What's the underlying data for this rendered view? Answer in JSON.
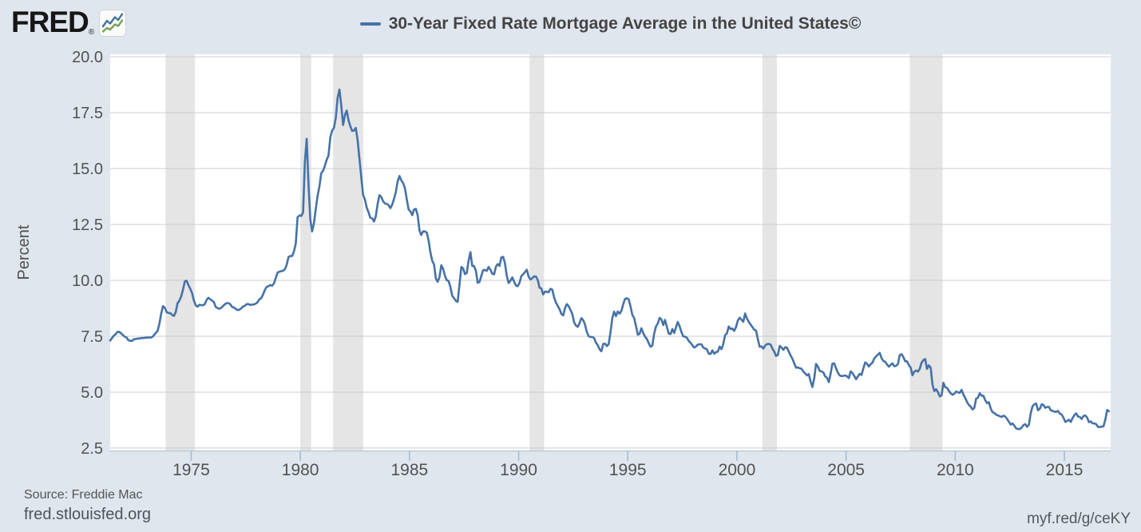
{
  "header": {
    "logo_text": "FRED",
    "registered_mark": "®"
  },
  "legend": {
    "series_label": "30-Year Fixed Rate Mortgage Average in the United States©"
  },
  "footer": {
    "source": "Source: Freddie Mac",
    "site": "fred.stlouisfed.org",
    "short_url": "myf.red/g/ceKY"
  },
  "colors": {
    "background": "#dfe6ee",
    "plot_background": "#ffffff",
    "line": "#4572a7",
    "grid": "#cccccc",
    "recession_band": "#e5e5e5",
    "axis_line": "#b9c9d6",
    "tick_mark": "#a4bccf",
    "tick_text": "#525252",
    "axis_title_text": "#4f4f4f",
    "logo_icon_blue": "#44749e",
    "logo_icon_green": "#76a255"
  },
  "chart_data": {
    "type": "line",
    "title": "30-Year Fixed Rate Mortgage Average in the United States©",
    "xlabel": "",
    "ylabel": "Percent",
    "x_ticks": [
      1975,
      1980,
      1985,
      1990,
      1995,
      2000,
      2005,
      2010,
      2015
    ],
    "y_ticks": [
      20,
      17.5,
      15,
      12.5,
      10,
      7.5,
      5,
      2.5
    ],
    "y_tick_labels": [
      "20.0",
      "17.5",
      "15.0",
      "12.5",
      "10.0",
      "7.5",
      "5.0",
      "2.5"
    ],
    "x_range": [
      1971.29,
      2017.12
    ],
    "y_range": [
      2.39,
      20.11
    ],
    "grid": true,
    "legend_position": "top-center",
    "recession_bands": [
      [
        1973.83,
        1975.17
      ],
      [
        1980.0,
        1980.5
      ],
      [
        1981.5,
        1982.88
      ],
      [
        1990.5,
        1991.17
      ],
      [
        2001.17,
        2001.83
      ],
      [
        2007.92,
        2009.42
      ]
    ],
    "series": {
      "name": "30-Year Fixed Rate Mortgage Average in the United States©",
      "units": "Percent",
      "frequency": "monthly",
      "start_year": 1971,
      "start_month": 4,
      "values": [
        7.31,
        7.42,
        7.53,
        7.6,
        7.7,
        7.69,
        7.63,
        7.55,
        7.48,
        7.44,
        7.32,
        7.3,
        7.29,
        7.37,
        7.37,
        7.4,
        7.4,
        7.42,
        7.42,
        7.43,
        7.44,
        7.44,
        7.44,
        7.46,
        7.54,
        7.65,
        7.73,
        8.05,
        8.5,
        8.85,
        8.77,
        8.58,
        8.54,
        8.54,
        8.46,
        8.41,
        8.58,
        8.97,
        9.09,
        9.28,
        9.59,
        9.96,
        9.98,
        9.79,
        9.62,
        9.43,
        9.1,
        8.89,
        8.82,
        8.91,
        8.89,
        8.89,
        8.94,
        9.13,
        9.22,
        9.15,
        9.1,
        9.02,
        8.81,
        8.76,
        8.73,
        8.77,
        8.85,
        8.93,
        8.98,
        8.98,
        8.93,
        8.81,
        8.79,
        8.72,
        8.67,
        8.69,
        8.75,
        8.83,
        8.86,
        8.94,
        8.94,
        8.9,
        8.92,
        8.92,
        8.96,
        9.02,
        9.16,
        9.2,
        9.36,
        9.57,
        9.71,
        9.74,
        9.79,
        9.76,
        9.86,
        10.11,
        10.35,
        10.39,
        10.41,
        10.43,
        10.5,
        10.69,
        11.04,
        11.09,
        11.09,
        11.3,
        11.64,
        12.83,
        12.9,
        12.88,
        13.04,
        15.28,
        16.33,
        14.26,
        12.71,
        12.19,
        12.56,
        13.2,
        13.79,
        14.21,
        14.79,
        14.9,
        15.13,
        15.4,
        15.58,
        16.4,
        16.7,
        16.83,
        17.28,
        18.16,
        18.53,
        17.82,
        16.95,
        17.4,
        17.6,
        17.16,
        16.89,
        16.68,
        16.7,
        16.82,
        16.27,
        15.43,
        14.61,
        13.83,
        13.62,
        13.25,
        13.04,
        12.8,
        12.78,
        12.63,
        12.87,
        13.43,
        13.81,
        13.73,
        13.54,
        13.44,
        13.42,
        13.37,
        13.23,
        13.39,
        13.65,
        13.94,
        14.42,
        14.67,
        14.47,
        14.35,
        14.13,
        13.64,
        13.18,
        13.08,
        12.92,
        13.17,
        13.2,
        12.91,
        12.22,
        12.03,
        12.19,
        12.19,
        12.14,
        11.78,
        11.26,
        10.88,
        10.71,
        10.08,
        9.94,
        10.14,
        10.68,
        10.51,
        10.2,
        10.01,
        9.97,
        9.7,
        9.31,
        9.2,
        9.08,
        9.04,
        9.83,
        10.6,
        10.54,
        10.28,
        10.33,
        10.89,
        11.26,
        10.65,
        10.64,
        10.43,
        9.89,
        9.93,
        10.2,
        10.46,
        10.46,
        10.43,
        10.6,
        10.48,
        10.3,
        10.27,
        10.61,
        10.73,
        10.65,
        11.03,
        11.05,
        10.77,
        10.2,
        9.88,
        9.99,
        10.13,
        9.95,
        9.77,
        9.74,
        9.9,
        10.2,
        10.27,
        10.37,
        10.48,
        10.16,
        10.04,
        10.1,
        10.18,
        10.17,
        10.01,
        9.67,
        9.64,
        9.37,
        9.5,
        9.49,
        9.47,
        9.62,
        9.58,
        9.24,
        9.01,
        8.86,
        8.71,
        8.5,
        8.43,
        8.76,
        8.94,
        8.85,
        8.67,
        8.51,
        8.13,
        7.98,
        7.92,
        8.09,
        8.31,
        8.22,
        8.02,
        7.68,
        7.5,
        7.47,
        7.47,
        7.42,
        7.21,
        7.11,
        6.92,
        6.83,
        7.16,
        7.17,
        7.06,
        7.15,
        7.68,
        8.32,
        8.6,
        8.4,
        8.61,
        8.51,
        8.64,
        8.93,
        9.17,
        9.2,
        9.15,
        8.83,
        8.46,
        8.32,
        7.96,
        7.57,
        7.61,
        7.86,
        7.64,
        7.48,
        7.38,
        7.2,
        7.03,
        7.08,
        7.62,
        7.93,
        8.07,
        8.32,
        8.25,
        8.0,
        8.23,
        7.92,
        7.62,
        7.6,
        7.82,
        7.65,
        7.9,
        8.14,
        7.94,
        7.69,
        7.5,
        7.48,
        7.43,
        7.29,
        7.21,
        7.1,
        6.99,
        7.04,
        7.13,
        7.14,
        7.14,
        7.0,
        6.95,
        6.92,
        6.72,
        6.71,
        6.87,
        6.72,
        6.79,
        6.81,
        7.04,
        6.92,
        7.15,
        7.55,
        7.63,
        7.94,
        7.82,
        7.85,
        7.74,
        7.91,
        8.21,
        8.33,
        8.24,
        8.15,
        8.52,
        8.29,
        8.15,
        8.03,
        7.91,
        7.8,
        7.75,
        7.38,
        7.03,
        7.05,
        6.95,
        7.08,
        7.15,
        7.16,
        7.13,
        6.95,
        6.82,
        6.62,
        6.66,
        7.07,
        7.0,
        6.89,
        7.01,
        6.99,
        6.81,
        6.65,
        6.49,
        6.29,
        6.09,
        6.11,
        6.07,
        6.05,
        5.92,
        5.84,
        5.75,
        5.81,
        5.48,
        5.23,
        5.63,
        6.26,
        6.15,
        5.95,
        5.93,
        5.88,
        5.71,
        5.64,
        5.45,
        5.83,
        6.27,
        6.29,
        6.06,
        5.87,
        5.75,
        5.72,
        5.73,
        5.75,
        5.71,
        5.63,
        5.93,
        5.86,
        5.72,
        5.58,
        5.7,
        5.82,
        5.77,
        6.07,
        6.33,
        6.27,
        6.15,
        6.25,
        6.32,
        6.51,
        6.6,
        6.68,
        6.76,
        6.52,
        6.4,
        6.36,
        6.24,
        6.14,
        6.22,
        6.29,
        6.16,
        6.18,
        6.26,
        6.66,
        6.7,
        6.57,
        6.38,
        6.38,
        6.21,
        6.1,
        5.76,
        5.92,
        5.97,
        5.92,
        6.04,
        6.32,
        6.43,
        6.48,
        6.04,
        6.2,
        6.09,
        5.33,
        5.05,
        5.13,
        5.0,
        4.81,
        4.86,
        5.42,
        5.22,
        5.19,
        5.06,
        4.95,
        4.88,
        4.93,
        5.03,
        4.99,
        4.97,
        5.1,
        4.89,
        4.74,
        4.56,
        4.43,
        4.35,
        4.23,
        4.3,
        4.71,
        4.76,
        4.95,
        4.84,
        4.84,
        4.64,
        4.51,
        4.55,
        4.27,
        4.11,
        4.07,
        3.99,
        3.96,
        3.92,
        3.89,
        3.95,
        3.91,
        3.8,
        3.68,
        3.55,
        3.6,
        3.5,
        3.38,
        3.35,
        3.35,
        3.41,
        3.53,
        3.57,
        3.45,
        3.54,
        4.07,
        4.37,
        4.46,
        4.49,
        4.19,
        4.26,
        4.46,
        4.43,
        4.3,
        4.34,
        4.34,
        4.19,
        4.16,
        4.13,
        4.12,
        4.16,
        4.04,
        4.0,
        3.86,
        3.67,
        3.71,
        3.77,
        3.67,
        3.84,
        3.98,
        4.05,
        3.91,
        3.89,
        3.8,
        3.94,
        3.96,
        3.87,
        3.66,
        3.69,
        3.61,
        3.6,
        3.57,
        3.44,
        3.44,
        3.46,
        3.47,
        3.77,
        4.2,
        4.15
      ]
    }
  }
}
